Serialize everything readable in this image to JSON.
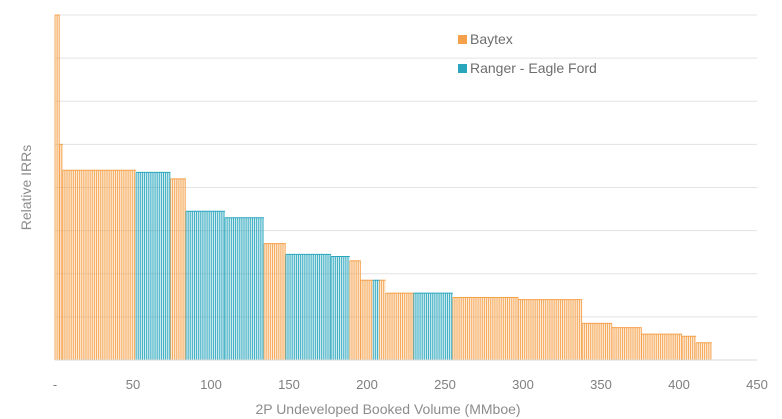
{
  "chart_data": {
    "type": "bar",
    "title": "",
    "xlabel": "2P Undeveloped Booked Volume (MMboe)",
    "ylabel": "Relative IRRs",
    "xlim": [
      0,
      450
    ],
    "ylim": [
      0,
      8
    ],
    "x_ticks": [
      "-",
      "50",
      "100",
      "150",
      "200",
      "250",
      "300",
      "350",
      "400",
      "450"
    ],
    "grid": true,
    "legend_position": "top-right",
    "colors": {
      "Baytex": "#f4a14a",
      "Ranger - Eagle Ford": "#2ba7bd"
    },
    "series": [
      {
        "name": "Baytex",
        "segments": [
          {
            "x0": 0,
            "x1": 3,
            "value": 8.0
          },
          {
            "x0": 3,
            "x1": 5,
            "value": 5.0
          },
          {
            "x0": 5,
            "x1": 52,
            "value": 4.4
          },
          {
            "x0": 74,
            "x1": 84,
            "value": 4.2
          },
          {
            "x0": 134,
            "x1": 148,
            "value": 2.7
          },
          {
            "x0": 189,
            "x1": 196,
            "value": 2.3
          },
          {
            "x0": 196,
            "x1": 204,
            "value": 1.85
          },
          {
            "x0": 208,
            "x1": 212,
            "value": 1.85
          },
          {
            "x0": 212,
            "x1": 230,
            "value": 1.55
          },
          {
            "x0": 255,
            "x1": 297,
            "value": 1.45
          },
          {
            "x0": 297,
            "x1": 338,
            "value": 1.4
          },
          {
            "x0": 338,
            "x1": 357,
            "value": 0.85
          },
          {
            "x0": 357,
            "x1": 376,
            "value": 0.75
          },
          {
            "x0": 376,
            "x1": 402,
            "value": 0.6
          },
          {
            "x0": 402,
            "x1": 411,
            "value": 0.55
          },
          {
            "x0": 411,
            "x1": 421,
            "value": 0.4
          }
        ]
      },
      {
        "name": "Ranger - Eagle Ford",
        "segments": [
          {
            "x0": 52,
            "x1": 74,
            "value": 4.35
          },
          {
            "x0": 84,
            "x1": 109,
            "value": 3.45
          },
          {
            "x0": 109,
            "x1": 134,
            "value": 3.3
          },
          {
            "x0": 148,
            "x1": 177,
            "value": 2.45
          },
          {
            "x0": 177,
            "x1": 189,
            "value": 2.4
          },
          {
            "x0": 204,
            "x1": 208,
            "value": 1.85
          },
          {
            "x0": 230,
            "x1": 255,
            "value": 1.55
          }
        ]
      }
    ]
  }
}
